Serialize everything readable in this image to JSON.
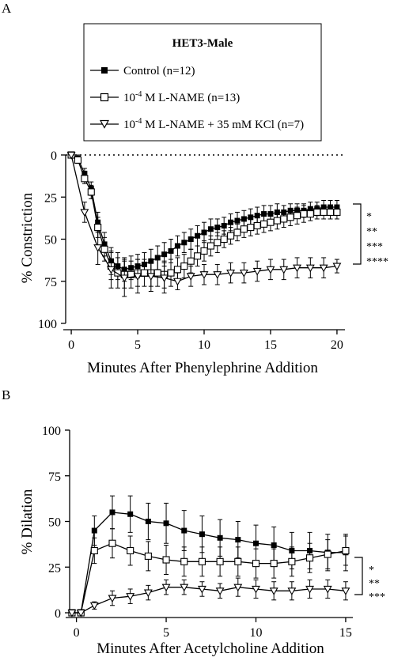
{
  "chart_data": [
    {
      "type": "line",
      "panel_label": "A",
      "legend": {
        "title": "HET3-Male",
        "placement": "top-center",
        "entries": [
          {
            "text": "Control (n=12)"
          },
          {
            "pre": "10",
            "sup": "-4",
            "post": " M L-NAME (n=13)"
          },
          {
            "pre": "10",
            "sup": "-4",
            "post": " M L-NAME + 35 mM KCl (n=7)"
          }
        ]
      },
      "xlabel": "Minutes After Phenylephrine Addition",
      "ylabel": "% Constriction",
      "xlim": [
        -0.6,
        20.6
      ],
      "ylim": [
        0,
        100
      ],
      "y_inverted": true,
      "xticks": [
        "0",
        "5",
        "10",
        "15",
        "20"
      ],
      "yticks": [
        "0",
        "25",
        "50",
        "75",
        "100"
      ],
      "reference_line_y": 0,
      "significance": [
        "*",
        "**",
        "***",
        "****"
      ],
      "series": [
        {
          "name": "Control (n=12)",
          "marker": "filled-square",
          "x": [
            0,
            0.5,
            1,
            1.5,
            2,
            2.5,
            3,
            3.5,
            4,
            4.5,
            5,
            5.5,
            6,
            6.5,
            7,
            7.5,
            8,
            8.5,
            9,
            9.5,
            10,
            10.5,
            11,
            11.5,
            12,
            12.5,
            13,
            13.5,
            14,
            14.5,
            15,
            15.5,
            16,
            16.5,
            17,
            17.5,
            18,
            18.5,
            19,
            19.5,
            20
          ],
          "y": [
            0,
            2,
            11,
            20,
            40,
            53,
            63,
            66,
            68,
            67,
            66,
            65,
            63,
            61,
            59,
            57,
            54,
            52,
            50,
            48,
            46,
            44,
            43,
            42,
            40,
            39,
            38,
            37,
            36,
            35,
            35,
            34,
            34,
            33,
            33,
            33,
            32,
            32,
            31,
            31,
            31
          ],
          "err": [
            0,
            2,
            3,
            4,
            6,
            7,
            8,
            8,
            7,
            7,
            7,
            7,
            7,
            7,
            7,
            7,
            6,
            6,
            6,
            6,
            6,
            6,
            5,
            5,
            5,
            5,
            5,
            5,
            5,
            5,
            5,
            5,
            4,
            4,
            4,
            4,
            4,
            4,
            4,
            4,
            4
          ]
        },
        {
          "name": "10-4 M L-NAME (n=13)",
          "marker": "open-square",
          "x": [
            0,
            0.5,
            1,
            1.5,
            2,
            2.5,
            3,
            3.5,
            4,
            4.5,
            5,
            5.5,
            6,
            6.5,
            7,
            7.5,
            8,
            8.5,
            9,
            9.5,
            10,
            10.5,
            11,
            11.5,
            12,
            12.5,
            13,
            13.5,
            14,
            14.5,
            15,
            15.5,
            16,
            16.5,
            17,
            17.5,
            18,
            18.5,
            19,
            19.5,
            20
          ],
          "y": [
            0,
            3,
            14,
            22,
            43,
            56,
            66,
            70,
            71,
            71,
            70,
            70,
            70,
            70,
            71,
            70,
            68,
            66,
            63,
            60,
            57,
            54,
            52,
            50,
            48,
            46,
            44,
            43,
            42,
            41,
            40,
            39,
            38,
            37,
            36,
            35,
            35,
            34,
            34,
            34,
            34
          ],
          "err": [
            0,
            2,
            3,
            4,
            6,
            7,
            8,
            9,
            8,
            8,
            8,
            8,
            8,
            8,
            8,
            8,
            7,
            7,
            7,
            6,
            6,
            6,
            6,
            5,
            5,
            5,
            5,
            5,
            5,
            5,
            5,
            5,
            5,
            5,
            5,
            5,
            4,
            4,
            4,
            4,
            4
          ]
        },
        {
          "name": "10-4 M L-NAME + 35 mM KCl (n=7)",
          "marker": "open-triangle-down",
          "x": [
            0,
            1,
            2,
            3,
            4,
            5,
            6,
            7,
            8,
            9,
            10,
            11,
            12,
            13,
            14,
            15,
            16,
            17,
            18,
            19,
            20
          ],
          "y": [
            0,
            34,
            55,
            68,
            73,
            72,
            72,
            73,
            75,
            72,
            71,
            71,
            70,
            70,
            69,
            68,
            68,
            67,
            67,
            67,
            66
          ],
          "err": [
            0,
            6,
            10,
            11,
            11,
            10,
            9,
            9,
            5,
            6,
            6,
            6,
            6,
            6,
            6,
            6,
            6,
            6,
            6,
            6,
            4
          ]
        }
      ]
    },
    {
      "type": "line",
      "panel_label": "B",
      "xlabel": "Minutes After Acetylcholine Addition",
      "ylabel": "% Dilation",
      "xlim": [
        -0.6,
        15.4
      ],
      "ylim": [
        0,
        100
      ],
      "y_inverted": false,
      "xticks": [
        "0",
        "5",
        "10",
        "15"
      ],
      "yticks": [
        "0",
        "25",
        "50",
        "75",
        "100"
      ],
      "significance": [
        "*",
        "**",
        "***"
      ],
      "series": [
        {
          "name": "Control (n=12)",
          "marker": "filled-square",
          "x": [
            -0.25,
            0.25,
            1,
            2,
            3,
            4,
            5,
            6,
            7,
            8,
            9,
            10,
            11,
            12,
            13,
            14,
            15
          ],
          "y": [
            0,
            0,
            45,
            55,
            54,
            50,
            49,
            45,
            43,
            41,
            40,
            38,
            37,
            34,
            34,
            33,
            33
          ],
          "err": [
            0,
            0,
            8,
            9,
            10,
            10,
            11,
            11,
            10,
            10,
            10,
            10,
            10,
            10,
            10,
            10,
            10
          ]
        },
        {
          "name": "10-4 M L-NAME (n=13)",
          "marker": "open-square",
          "x": [
            -0.25,
            0.25,
            1,
            2,
            3,
            4,
            5,
            6,
            7,
            8,
            9,
            10,
            11,
            12,
            13,
            14,
            15
          ],
          "y": [
            0,
            0,
            34,
            38,
            34,
            31,
            29,
            28,
            28,
            28,
            28,
            27,
            27,
            28,
            30,
            32,
            34
          ],
          "err": [
            0,
            0,
            7,
            8,
            8,
            8,
            8,
            8,
            8,
            8,
            8,
            8,
            8,
            8,
            8,
            8,
            8
          ]
        },
        {
          "name": "10-4 M L-NAME + 35 mM KCl (n=7)",
          "marker": "open-triangle-down",
          "x": [
            -0.25,
            0.25,
            1,
            2,
            3,
            4,
            5,
            6,
            7,
            8,
            9,
            10,
            11,
            12,
            13,
            14,
            15
          ],
          "y": [
            0,
            0,
            4,
            8,
            9,
            11,
            14,
            14,
            13,
            12,
            14,
            13,
            12,
            12,
            13,
            13,
            12
          ],
          "err": [
            0,
            0,
            2,
            4,
            4,
            4,
            4,
            4,
            4,
            4,
            5,
            5,
            5,
            5,
            5,
            5,
            5
          ]
        }
      ]
    }
  ]
}
